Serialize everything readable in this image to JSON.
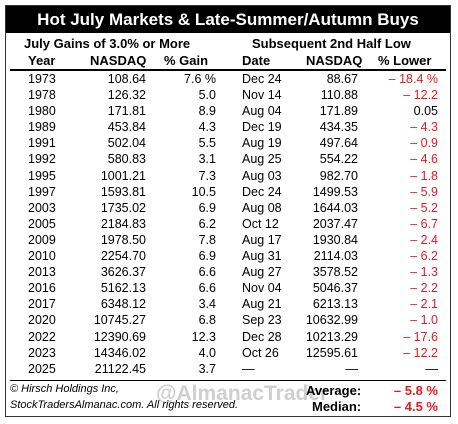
{
  "title": "Hot July Markets & Late-Summer/Autumn Buys",
  "header_left": "July Gains of 3.0% or More",
  "header_right": "Subsequent 2nd Half Low",
  "columns": {
    "year": "Year",
    "july_nasdaq": "NASDAQ",
    "gain": "% Gain",
    "date": "Date",
    "low_nasdaq": "NASDAQ",
    "lower": "% Lower"
  },
  "rows": [
    {
      "year": "1973",
      "july_nasdaq": "108.64",
      "gain": "7.6 %",
      "date": "Dec 24",
      "low_nasdaq": "88.67",
      "lower": "– 18.4 %"
    },
    {
      "year": "1978",
      "july_nasdaq": "126.32",
      "gain": "5.0",
      "date": "Nov 14",
      "low_nasdaq": "110.88",
      "lower": "– 12.2"
    },
    {
      "year": "1980",
      "july_nasdaq": "171.81",
      "gain": "8.9",
      "date": "Aug 04",
      "low_nasdaq": "171.89",
      "lower": "0.05"
    },
    {
      "year": "1989",
      "july_nasdaq": "453.84",
      "gain": "4.3",
      "date": "Dec 19",
      "low_nasdaq": "434.35",
      "lower": "– 4.3"
    },
    {
      "year": "1991",
      "july_nasdaq": "502.04",
      "gain": "5.5",
      "date": "Aug 19",
      "low_nasdaq": "497.64",
      "lower": "– 0.9"
    },
    {
      "year": "1992",
      "july_nasdaq": "580.83",
      "gain": "3.1",
      "date": "Aug 25",
      "low_nasdaq": "554.22",
      "lower": "– 4.6"
    },
    {
      "year": "1995",
      "july_nasdaq": "1001.21",
      "gain": "7.3",
      "date": "Aug 03",
      "low_nasdaq": "982.70",
      "lower": "– 1.8"
    },
    {
      "year": "1997",
      "july_nasdaq": "1593.81",
      "gain": "10.5",
      "date": "Dec 24",
      "low_nasdaq": "1499.53",
      "lower": "– 5.9"
    },
    {
      "year": "2003",
      "july_nasdaq": "1735.02",
      "gain": "6.9",
      "date": "Aug 08",
      "low_nasdaq": "1644.03",
      "lower": "– 5.2"
    },
    {
      "year": "2005",
      "july_nasdaq": "2184.83",
      "gain": "6.2",
      "date": "Oct 12",
      "low_nasdaq": "2037.47",
      "lower": "– 6.7"
    },
    {
      "year": "2009",
      "july_nasdaq": "1978.50",
      "gain": "7.8",
      "date": "Aug 17",
      "low_nasdaq": "1930.84",
      "lower": "– 2.4"
    },
    {
      "year": "2010",
      "july_nasdaq": "2254.70",
      "gain": "6.9",
      "date": "Aug 31",
      "low_nasdaq": "2114.03",
      "lower": "– 6.2"
    },
    {
      "year": "2013",
      "july_nasdaq": "3626.37",
      "gain": "6.6",
      "date": "Aug 27",
      "low_nasdaq": "3578.52",
      "lower": "– 1.3"
    },
    {
      "year": "2016",
      "july_nasdaq": "5162.13",
      "gain": "6.6",
      "date": "Nov 04",
      "low_nasdaq": "5046.37",
      "lower": "– 2.2"
    },
    {
      "year": "2017",
      "july_nasdaq": "6348.12",
      "gain": "3.4",
      "date": "Aug 21",
      "low_nasdaq": "6213.13",
      "lower": "– 2.1"
    },
    {
      "year": "2020",
      "july_nasdaq": "10745.27",
      "gain": "6.8",
      "date": "Sep 23",
      "low_nasdaq": "10632.99",
      "lower": "– 1.0"
    },
    {
      "year": "2022",
      "july_nasdaq": "12390.69",
      "gain": "12.3",
      "date": "Dec 28",
      "low_nasdaq": "10213.29",
      "lower": "– 17.6"
    },
    {
      "year": "2023",
      "july_nasdaq": "14346.02",
      "gain": "4.0",
      "date": "Oct 26",
      "low_nasdaq": "12595.61",
      "lower": "– 12.2"
    },
    {
      "year": "2025",
      "july_nasdaq": "21122.45",
      "gain": "3.7",
      "date": "—",
      "low_nasdaq": "—",
      "lower": "—"
    }
  ],
  "copyright": "© Hirsch Holdings Inc,",
  "website": "StockTradersAlmanac.com. All rights reserved.",
  "watermark": "@AlmanacTrader",
  "average_label": "Average:",
  "average_value": "– 5.8 %",
  "median_label": "Median:",
  "median_value": "– 4.5 %",
  "colors": {
    "negative": "#e31b23",
    "title_bg": "#000000"
  }
}
